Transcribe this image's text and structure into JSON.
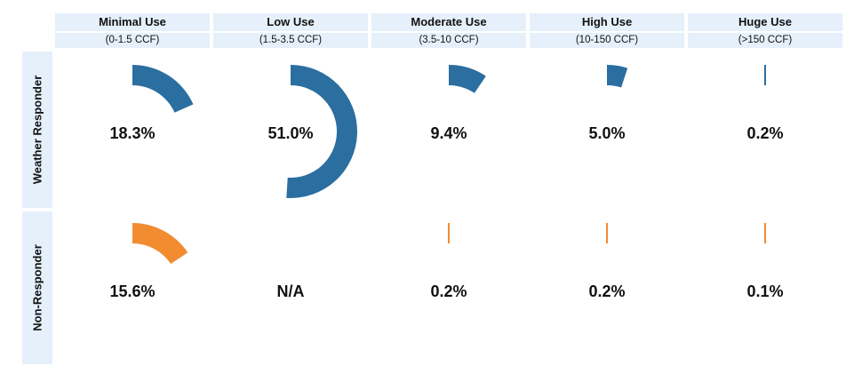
{
  "chart_data": {
    "type": "radial-bar",
    "categories": [
      {
        "label": "Minimal Use",
        "range": "(0-1.5 CCF)"
      },
      {
        "label": "Low Use",
        "range": "(1.5-3.5 CCF)"
      },
      {
        "label": "Moderate Use",
        "range": "(3.5-10 CCF)"
      },
      {
        "label": "High Use",
        "range": "(10-150 CCF)"
      },
      {
        "label": "Huge Use",
        "range": "(>150 CCF)"
      }
    ],
    "series": [
      {
        "name": "Weather Responder",
        "color": "#2b6ea0",
        "values": [
          18.3,
          51.0,
          9.4,
          5.0,
          0.2
        ],
        "labels": [
          "18.3%",
          "51.0%",
          "9.4%",
          "5.0%",
          "0.2%"
        ]
      },
      {
        "name": "Non-Responder",
        "color": "#f28c30",
        "values": [
          15.6,
          null,
          0.2,
          0.2,
          0.1
        ],
        "labels": [
          "15.6%",
          "N/A",
          "0.2%",
          "0.2%",
          "0.1%"
        ]
      }
    ]
  }
}
